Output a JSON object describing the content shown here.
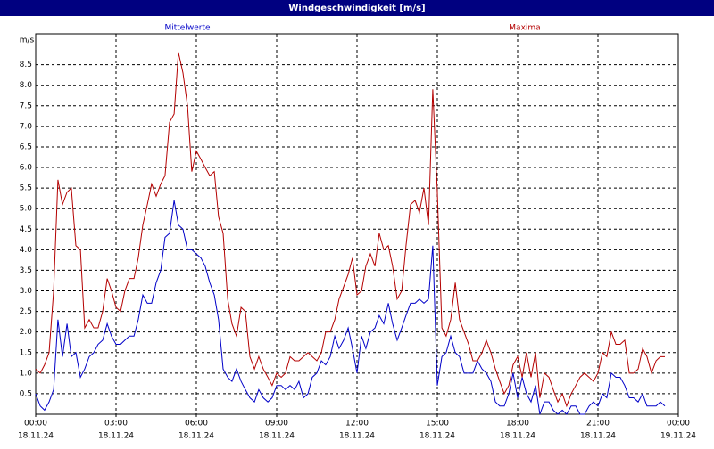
{
  "chart_data": {
    "type": "line",
    "title": "Windgeschwindigkeit [m/s]",
    "y_label": "m/s",
    "grid": true,
    "ylim": [
      0,
      9.25
    ],
    "yticks": [
      0.5,
      {
        "value": 1,
        "label": "1.0"
      },
      1.5,
      {
        "value": 2,
        "label": "2.0"
      },
      2.5,
      {
        "value": 3,
        "label": "3.0"
      },
      3.5,
      {
        "value": 4,
        "label": "4.0"
      },
      4.5,
      {
        "value": 5,
        "label": "5.0"
      },
      5.5,
      {
        "value": 6,
        "label": "6.0"
      },
      6.5,
      {
        "value": 7,
        "label": "7.0"
      },
      7.5,
      {
        "value": 8,
        "label": "8.0"
      },
      8.5
    ],
    "xlim": [
      0,
      24
    ],
    "xticks": [
      {
        "value": 0,
        "label": "00:00"
      },
      {
        "value": 3,
        "label": "03:00"
      },
      {
        "value": 6,
        "label": "06:00"
      },
      {
        "value": 9,
        "label": "09:00"
      },
      {
        "value": 12,
        "label": "12:00"
      },
      {
        "value": 15,
        "label": "15:00"
      },
      {
        "value": 18,
        "label": "18:00"
      },
      {
        "value": 21,
        "label": "21:00"
      },
      {
        "value": 24,
        "label": "00:00"
      }
    ],
    "xtick_dates": [
      "18.11.24",
      "18.11.24",
      "18.11.24",
      "18.11.24",
      "18.11.24",
      "18.11.24",
      "18.11.24",
      "18.11.24",
      "19.11.24"
    ],
    "x": [
      0,
      0.17,
      0.33,
      0.5,
      0.67,
      0.83,
      1,
      1.17,
      1.33,
      1.5,
      1.67,
      1.83,
      2,
      2.17,
      2.33,
      2.5,
      2.67,
      2.83,
      3,
      3.17,
      3.33,
      3.5,
      3.67,
      3.83,
      4,
      4.17,
      4.33,
      4.5,
      4.67,
      4.83,
      5,
      5.17,
      5.33,
      5.5,
      5.67,
      5.83,
      6,
      6.17,
      6.33,
      6.5,
      6.67,
      6.83,
      7,
      7.17,
      7.33,
      7.5,
      7.67,
      7.83,
      8,
      8.17,
      8.33,
      8.5,
      8.67,
      8.83,
      9,
      9.17,
      9.33,
      9.5,
      9.67,
      9.83,
      10,
      10.17,
      10.33,
      10.5,
      10.67,
      10.83,
      11,
      11.17,
      11.33,
      11.5,
      11.67,
      11.83,
      12,
      12.17,
      12.33,
      12.5,
      12.67,
      12.83,
      13,
      13.17,
      13.33,
      13.5,
      13.67,
      13.83,
      14,
      14.17,
      14.33,
      14.5,
      14.67,
      14.83,
      15,
      15.17,
      15.33,
      15.5,
      15.67,
      15.83,
      16,
      16.17,
      16.33,
      16.5,
      16.67,
      16.83,
      17,
      17.17,
      17.33,
      17.5,
      17.67,
      17.83,
      18,
      18.17,
      18.33,
      18.5,
      18.67,
      18.83,
      19,
      19.17,
      19.33,
      19.5,
      19.67,
      19.83,
      20,
      20.17,
      20.33,
      20.5,
      20.67,
      20.83,
      21,
      21.17,
      21.33,
      21.5,
      21.67,
      21.83,
      22,
      22.17,
      22.33,
      22.5,
      22.67,
      22.83,
      23,
      23.17,
      23.33,
      23.5
    ],
    "series": [
      {
        "name": "Mittelwerte",
        "color": "#0000c8",
        "values": [
          0.5,
          0.2,
          0.1,
          0.3,
          0.6,
          2.3,
          1.4,
          2.2,
          1.4,
          1.5,
          0.9,
          1.1,
          1.4,
          1.5,
          1.7,
          1.8,
          2.2,
          1.9,
          1.7,
          1.7,
          1.8,
          1.9,
          1.9,
          2.3,
          2.9,
          2.7,
          2.7,
          3.2,
          3.5,
          4.3,
          4.4,
          5.2,
          4.6,
          4.5,
          4.0,
          4.0,
          3.9,
          3.8,
          3.6,
          3.2,
          2.9,
          2.3,
          1.1,
          0.9,
          0.8,
          1.1,
          0.8,
          0.6,
          0.4,
          0.3,
          0.6,
          0.4,
          0.3,
          0.4,
          0.7,
          0.7,
          0.6,
          0.7,
          0.6,
          0.8,
          0.4,
          0.5,
          0.9,
          1.0,
          1.3,
          1.2,
          1.4,
          1.9,
          1.6,
          1.8,
          2.1,
          1.6,
          1.0,
          1.9,
          1.6,
          2.0,
          2.1,
          2.4,
          2.2,
          2.7,
          2.2,
          1.8,
          2.1,
          2.4,
          2.7,
          2.7,
          2.8,
          2.7,
          2.8,
          4.1,
          0.7,
          1.4,
          1.5,
          1.9,
          1.5,
          1.4,
          1.0,
          1.0,
          1.0,
          1.3,
          1.1,
          1.0,
          0.8,
          0.3,
          0.2,
          0.2,
          0.5,
          1.0,
          0.4,
          0.9,
          0.5,
          0.3,
          0.7,
          0.0,
          0.3,
          0.3,
          0.1,
          0.0,
          0.1,
          0.0,
          0.2,
          0.2,
          0.0,
          0.0,
          0.2,
          0.3,
          0.2,
          0.5,
          0.4,
          1.0,
          0.9,
          0.9,
          0.7,
          0.4,
          0.4,
          0.3,
          0.5,
          0.2,
          0.2,
          0.2,
          0.3,
          0.2
        ]
      },
      {
        "name": "Maxima",
        "color": "#b40000",
        "values": [
          1.1,
          1.0,
          1.2,
          1.5,
          3.0,
          5.7,
          5.1,
          5.4,
          5.5,
          4.1,
          4.0,
          2.1,
          2.3,
          2.1,
          2.1,
          2.5,
          3.3,
          3.0,
          2.6,
          2.5,
          3.0,
          3.3,
          3.3,
          3.8,
          4.6,
          5.1,
          5.6,
          5.3,
          5.6,
          5.8,
          7.1,
          7.3,
          8.8,
          8.3,
          7.5,
          5.9,
          6.4,
          6.2,
          6.0,
          5.8,
          5.9,
          4.8,
          4.4,
          2.8,
          2.2,
          1.9,
          2.6,
          2.5,
          1.4,
          1.1,
          1.4,
          1.1,
          0.9,
          0.7,
          1.0,
          0.9,
          1.0,
          1.4,
          1.3,
          1.3,
          1.4,
          1.5,
          1.4,
          1.3,
          1.5,
          2.0,
          2.0,
          2.3,
          2.8,
          3.1,
          3.4,
          3.8,
          2.9,
          3.0,
          3.6,
          3.9,
          3.6,
          4.4,
          4.0,
          4.1,
          3.6,
          2.8,
          3.0,
          4.1,
          5.1,
          5.2,
          4.9,
          5.5,
          4.6,
          7.9,
          5.4,
          2.1,
          1.9,
          2.3,
          3.2,
          2.3,
          2.0,
          1.7,
          1.3,
          1.3,
          1.5,
          1.8,
          1.5,
          1.1,
          0.8,
          0.5,
          0.7,
          1.2,
          1.4,
          0.9,
          1.5,
          0.9,
          1.5,
          0.4,
          1.0,
          0.9,
          0.6,
          0.3,
          0.5,
          0.2,
          0.5,
          0.7,
          0.9,
          1.0,
          0.9,
          0.8,
          1.0,
          1.5,
          1.4,
          2.0,
          1.7,
          1.7,
          1.8,
          1.0,
          1.0,
          1.1,
          1.6,
          1.4,
          1.0,
          1.3,
          1.4,
          1.4
        ]
      }
    ]
  }
}
